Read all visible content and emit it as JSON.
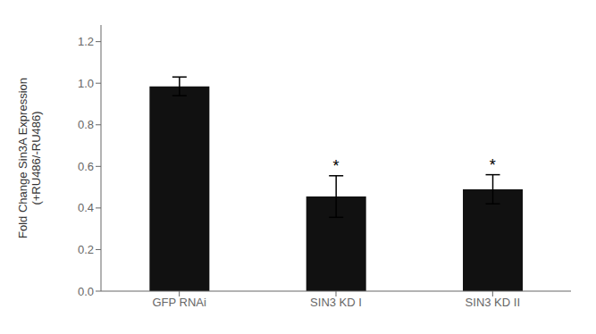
{
  "chart_data": {
    "type": "bar",
    "categories": [
      "GFP RNAi",
      "SIN3 KD I",
      "SIN3 KD II"
    ],
    "values": [
      0.985,
      0.455,
      0.49
    ],
    "errors": [
      0.045,
      0.1,
      0.07
    ],
    "color": "#111111",
    "ylabel": "Fold Change Sin3A Expression\n(+RU486/-RU486)",
    "ylim": [
      0,
      1.28
    ],
    "yticks": [
      {
        "value": 0,
        "label": "0.0"
      },
      0.2,
      0.4,
      0.6,
      0.8,
      {
        "value": 1.0,
        "label": "1.0"
      },
      1.2
    ],
    "grid": false,
    "annotations": [
      {
        "text": "*",
        "x": "SIN3 KD I"
      },
      {
        "text": "*",
        "x": "SIN3 KD II"
      }
    ]
  }
}
